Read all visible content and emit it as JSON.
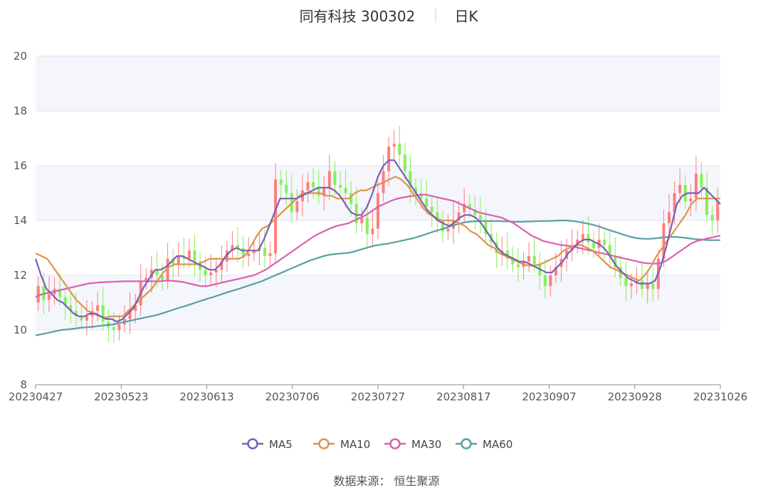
{
  "header": {
    "name": "同有科技 300302",
    "period": "日K"
  },
  "footer": {
    "source": "数据来源： 恒生聚源"
  },
  "colors": {
    "up": "#fc7f7f",
    "down": "#85f05a",
    "MA5": "#7b5fb5",
    "MA10": "#e2924c",
    "MA30": "#dc5fb0",
    "MA60": "#5a9fa1",
    "plotBand": "#f4f6fb",
    "grid": "#e3e6ef"
  },
  "chart_data": {
    "type": "candlestick",
    "ylim": [
      8,
      20
    ],
    "yticks": [
      8,
      10,
      12,
      14,
      16,
      18,
      20
    ],
    "xticks": [
      "20230427",
      "20230523",
      "20230613",
      "20230706",
      "20230727",
      "20230817",
      "20230907",
      "20230928",
      "20231026"
    ],
    "n_days": 127,
    "legend": {
      "position": "bottom",
      "items": [
        "MA5",
        "MA10",
        "MA30",
        "MA60"
      ]
    },
    "close": [
      11.6,
      11.1,
      11.3,
      11.5,
      11.2,
      10.9,
      10.7,
      10.5,
      10.35,
      10.5,
      10.7,
      10.9,
      10.3,
      10.1,
      10.0,
      10.2,
      10.4,
      10.7,
      10.9,
      11.8,
      11.9,
      12.2,
      12.0,
      11.8,
      12.6,
      12.4,
      12.7,
      12.6,
      12.9,
      12.5,
      12.2,
      12.0,
      12.1,
      12.2,
      12.5,
      12.9,
      13.1,
      13.0,
      12.7,
      12.8,
      12.9,
      13.0,
      12.7,
      12.8,
      15.5,
      15.3,
      15.0,
      14.3,
      14.7,
      15.1,
      15.4,
      15.2,
      14.9,
      15.2,
      15.8,
      15.3,
      15.2,
      15.0,
      14.6,
      13.9,
      14.1,
      13.5,
      13.7,
      15.0,
      15.8,
      16.7,
      16.8,
      16.4,
      15.8,
      15.2,
      15.0,
      14.8,
      14.5,
      14.3,
      14.0,
      13.6,
      13.7,
      14.0,
      14.3,
      14.6,
      14.4,
      14.2,
      14.0,
      13.5,
      13.2,
      12.8,
      12.9,
      12.6,
      12.4,
      12.3,
      12.5,
      12.7,
      12.4,
      12.0,
      11.6,
      12.0,
      12.3,
      12.6,
      12.9,
      13.1,
      13.3,
      13.5,
      13.2,
      13.0,
      13.3,
      13.1,
      12.7,
      12.3,
      11.9,
      11.6,
      11.7,
      11.8,
      11.5,
      11.7,
      11.5,
      12.6,
      13.9,
      14.3,
      15.0,
      15.3,
      14.7,
      14.8,
      15.7,
      15.2,
      14.2,
      14.0,
      14.7
    ],
    "MA5": [
      12.6,
      12.0,
      11.5,
      11.3,
      11.1,
      11.0,
      10.8,
      10.6,
      10.5,
      10.5,
      10.6,
      10.6,
      10.5,
      10.4,
      10.4,
      10.3,
      10.4,
      10.6,
      10.8,
      11.2,
      11.6,
      11.9,
      12.2,
      12.2,
      12.3,
      12.5,
      12.7,
      12.7,
      12.6,
      12.5,
      12.4,
      12.3,
      12.2,
      12.2,
      12.4,
      12.7,
      12.9,
      13.0,
      12.9,
      12.9,
      12.9,
      12.9,
      13.3,
      13.8,
      14.3,
      14.8,
      14.8,
      14.8,
      14.8,
      14.9,
      15.0,
      15.1,
      15.2,
      15.2,
      15.2,
      15.1,
      14.9,
      14.6,
      14.3,
      14.2,
      14.2,
      14.5,
      15.0,
      15.6,
      16.0,
      16.2,
      16.2,
      15.9,
      15.6,
      15.3,
      15.0,
      14.7,
      14.4,
      14.2,
      14.0,
      13.9,
      13.8,
      13.9,
      14.1,
      14.2,
      14.2,
      14.1,
      13.9,
      13.6,
      13.3,
      13.0,
      12.8,
      12.7,
      12.6,
      12.5,
      12.5,
      12.4,
      12.3,
      12.2,
      12.1,
      12.1,
      12.3,
      12.5,
      12.8,
      13.0,
      13.2,
      13.3,
      13.3,
      13.2,
      13.1,
      12.9,
      12.6,
      12.3,
      12.1,
      11.9,
      11.8,
      11.7,
      11.7,
      11.7,
      11.8,
      12.3,
      13.0,
      13.8,
      14.6,
      14.9,
      15.0,
      15.0,
      15.0,
      15.2,
      15.0,
      14.8,
      14.6
    ],
    "MA10": [
      12.8,
      12.7,
      12.6,
      12.3,
      12.0,
      11.7,
      11.4,
      11.1,
      10.9,
      10.7,
      10.6,
      10.5,
      10.45,
      10.5,
      10.5,
      10.5,
      10.7,
      10.9,
      11.1,
      11.3,
      11.5,
      11.8,
      12.1,
      12.3,
      12.4,
      12.4,
      12.4,
      12.4,
      12.4,
      12.5,
      12.6,
      12.6,
      12.6,
      12.6,
      12.6,
      12.6,
      12.7,
      13.0,
      13.4,
      13.7,
      13.8,
      14.0,
      14.2,
      14.4,
      14.6,
      14.8,
      15.0,
      15.0,
      15.0,
      15.0,
      14.9,
      14.9,
      14.8,
      14.8,
      14.8,
      15.0,
      15.1,
      15.1,
      15.2,
      15.3,
      15.4,
      15.5,
      15.6,
      15.5,
      15.3,
      15.0,
      14.7,
      14.4,
      14.2,
      14.1,
      14.0,
      14.0,
      14.0,
      13.9,
      13.8,
      13.6,
      13.5,
      13.3,
      13.1,
      13.0,
      12.8,
      12.7,
      12.6,
      12.5,
      12.4,
      12.35,
      12.35,
      12.4,
      12.5,
      12.6,
      12.7,
      12.9,
      13.0,
      13.1,
      13.1,
      13.0,
      12.9,
      12.7,
      12.5,
      12.3,
      12.2,
      12.1,
      12.0,
      11.9,
      11.8,
      12.0,
      12.3,
      12.7,
      13.0,
      13.3,
      13.6,
      13.9,
      14.2,
      14.6,
      14.8,
      14.8,
      14.8,
      14.8,
      14.8
    ],
    "MA30": [
      11.2,
      11.3,
      11.35,
      11.4,
      11.45,
      11.5,
      11.55,
      11.6,
      11.65,
      11.7,
      11.72,
      11.74,
      11.75,
      11.76,
      11.77,
      11.78,
      11.78,
      11.78,
      11.78,
      11.78,
      11.78,
      11.78,
      11.8,
      11.8,
      11.78,
      11.75,
      11.7,
      11.65,
      11.6,
      11.6,
      11.65,
      11.7,
      11.75,
      11.8,
      11.85,
      11.9,
      11.95,
      12.0,
      12.1,
      12.2,
      12.35,
      12.5,
      12.65,
      12.8,
      12.95,
      13.1,
      13.25,
      13.4,
      13.52,
      13.62,
      13.72,
      13.8,
      13.85,
      13.9,
      14.0,
      14.1,
      14.2,
      14.35,
      14.5,
      14.6,
      14.7,
      14.78,
      14.83,
      14.87,
      14.9,
      14.93,
      14.95,
      14.9,
      14.85,
      14.8,
      14.75,
      14.7,
      14.6,
      14.5,
      14.4,
      14.3,
      14.25,
      14.2,
      14.15,
      14.1,
      14.0,
      13.9,
      13.75,
      13.6,
      13.45,
      13.35,
      13.25,
      13.2,
      13.15,
      13.1,
      13.08,
      13.05,
      13.0,
      12.95,
      12.9,
      12.85,
      12.8,
      12.75,
      12.7,
      12.65,
      12.6,
      12.55,
      12.5,
      12.45,
      12.43,
      12.42,
      12.45,
      12.55,
      12.7,
      12.85,
      13.0,
      13.15,
      13.25,
      13.3,
      13.35,
      13.4,
      13.45
    ],
    "MA60": [
      9.8,
      9.85,
      9.9,
      9.95,
      10.0,
      10.02,
      10.05,
      10.08,
      10.1,
      10.12,
      10.15,
      10.18,
      10.2,
      10.25,
      10.3,
      10.35,
      10.4,
      10.45,
      10.5,
      10.55,
      10.62,
      10.7,
      10.78,
      10.85,
      10.92,
      11.0,
      11.08,
      11.15,
      11.22,
      11.3,
      11.38,
      11.45,
      11.52,
      11.6,
      11.68,
      11.75,
      11.85,
      11.95,
      12.05,
      12.15,
      12.25,
      12.35,
      12.45,
      12.55,
      12.62,
      12.7,
      12.75,
      12.78,
      12.8,
      12.82,
      12.88,
      12.95,
      13.02,
      13.08,
      13.12,
      13.15,
      13.2,
      13.25,
      13.3,
      13.35,
      13.42,
      13.5,
      13.58,
      13.65,
      13.72,
      13.8,
      13.87,
      13.93,
      13.96,
      13.97,
      13.98,
      13.98,
      13.98,
      13.97,
      13.96,
      13.95,
      13.95,
      13.96,
      13.97,
      13.98,
      13.98,
      13.99,
      14.0,
      14.0,
      13.98,
      13.94,
      13.9,
      13.85,
      13.78,
      13.7,
      13.62,
      13.55,
      13.47,
      13.4,
      13.35,
      13.33,
      13.33,
      13.35,
      13.38,
      13.4,
      13.4,
      13.38,
      13.35,
      13.32,
      13.3,
      13.28,
      13.28,
      13.28
    ]
  }
}
